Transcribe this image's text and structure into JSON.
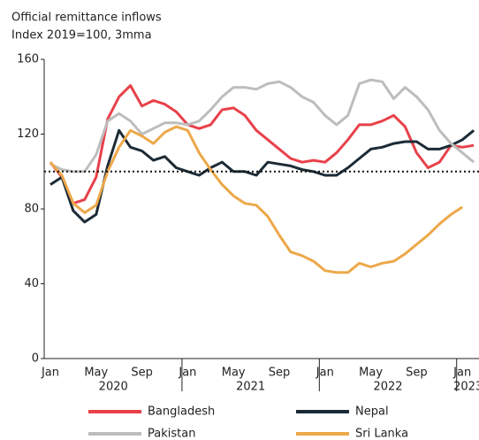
{
  "chart_data": {
    "type": "line",
    "title": "Official remittance inflows",
    "subtitle": "Index 2019=100, 3mma",
    "categories": [
      "Jan",
      null,
      null,
      null,
      "May",
      null,
      null,
      null,
      "Sep",
      null,
      null,
      null,
      "Jan",
      null,
      null,
      null,
      "May",
      null,
      null,
      null,
      "Sep",
      null,
      null,
      null,
      "Jan",
      null,
      null,
      null,
      "May",
      null,
      null,
      null,
      "Sep",
      null,
      null,
      null,
      "Jan",
      null
    ],
    "years": [
      "2020",
      "2021",
      "2022",
      "2023"
    ],
    "series": [
      {
        "name": "Bangladesh",
        "color": "#e8414a",
        "values": [
          105,
          97,
          83,
          85,
          97,
          128,
          140,
          146,
          135,
          138,
          136,
          132,
          125,
          123,
          125,
          133,
          134,
          130,
          122,
          117,
          112,
          107,
          105,
          106,
          105,
          110,
          117,
          125,
          125,
          127,
          130,
          124,
          110,
          102,
          105,
          114,
          113,
          114
        ]
      },
      {
        "name": "Nepal",
        "color": "#1c2b36",
        "values": [
          93,
          97,
          79,
          73,
          77,
          103,
          122,
          113,
          111,
          106,
          108,
          102,
          100,
          98,
          102,
          105,
          100,
          100,
          98,
          105,
          104,
          103,
          101,
          100,
          98,
          98,
          102,
          107,
          112,
          113,
          115,
          116,
          116,
          112,
          112,
          114,
          117,
          122
        ]
      },
      {
        "name": "Pakistan",
        "color": "#bdbdbd",
        "values": [
          104,
          101,
          100,
          100,
          109,
          127,
          131,
          127,
          120,
          123,
          126,
          126,
          125,
          127,
          133,
          140,
          145,
          145,
          144,
          147,
          148,
          145,
          140,
          137,
          130,
          125,
          130,
          147,
          149,
          148,
          139,
          145,
          140,
          133,
          122,
          115,
          110,
          105
        ]
      },
      {
        "name": "Sri Lanka",
        "color": "#eda84a",
        "values": [
          105,
          98,
          83,
          78,
          82,
          100,
          113,
          122,
          119,
          115,
          121,
          124,
          122,
          110,
          101,
          93,
          87,
          83,
          82,
          76,
          66,
          57,
          55,
          52,
          47,
          46,
          46,
          51,
          49,
          51,
          52,
          56,
          61,
          66,
          72,
          77,
          81,
          null
        ]
      }
    ],
    "ylim": [
      0,
      160
    ],
    "yticks": [
      0,
      40,
      80,
      120,
      160
    ],
    "reference_line": 100
  }
}
